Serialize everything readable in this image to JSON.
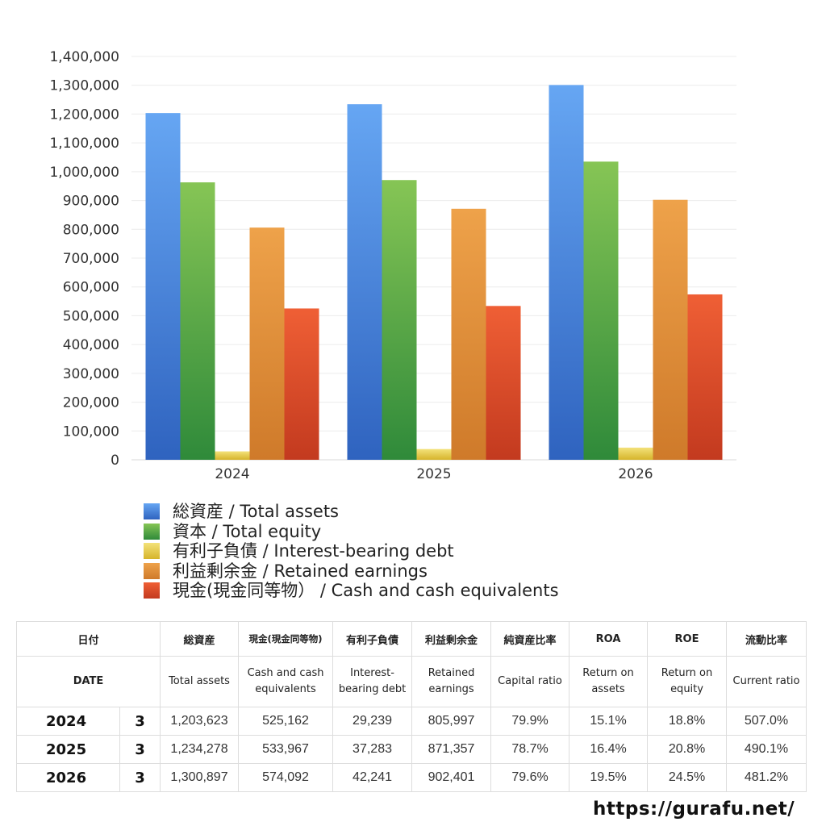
{
  "chart_data": {
    "type": "bar",
    "categories": [
      "2024",
      "2025",
      "2026"
    ],
    "ylim": [
      0,
      1400000
    ],
    "y_ticks": [
      "0",
      "100,000",
      "200,000",
      "300,000",
      "400,000",
      "500,000",
      "600,000",
      "700,000",
      "800,000",
      "900,000",
      "1,000,000",
      "1,100,000",
      "1,200,000",
      "1,300,000",
      "1,400,000"
    ],
    "grid": true,
    "legend_position": "bottom",
    "series": [
      {
        "name": "総資産 / Total assets",
        "values": [
          1203623,
          1234278,
          1300897
        ],
        "color_top": "#66a6f3",
        "color_bottom": "#2f63bf"
      },
      {
        "name": "資本 / Total equity",
        "values": [
          963000,
          971000,
          1035000
        ],
        "color_top": "#86c555",
        "color_bottom": "#2f8a3a"
      },
      {
        "name": "有利子負債 / Interest-bearing debt",
        "values": [
          29239,
          37283,
          42241
        ],
        "color_top": "#f3e27a",
        "color_bottom": "#d6b42b"
      },
      {
        "name": "利益剰余金 / Retained earnings",
        "values": [
          805997,
          871357,
          902401
        ],
        "color_top": "#eea24a",
        "color_bottom": "#cf7a2a"
      },
      {
        "name": "現金(現金同等物） /  Cash and cash equivalents",
        "values": [
          525162,
          533967,
          574092
        ],
        "color_top": "#ef5f35",
        "color_bottom": "#c33a1f"
      }
    ]
  },
  "table": {
    "header_ja": {
      "date": "日付",
      "total_assets": "総資産",
      "cash": "現金(現金同等物)",
      "debt": "有利子負債",
      "retained": "利益剰余金",
      "capital_ratio": "純資産比率",
      "roa": "ROA",
      "roe": "ROE",
      "current_ratio": "流動比率"
    },
    "header_en": {
      "date": "DATE",
      "total_assets": "Total assets",
      "cash": "Cash and cash equivalents",
      "debt": "Interest-bearing debt",
      "retained": "Retained earnings",
      "capital_ratio": "Capital ratio",
      "roa": "Return on assets",
      "roe": "Return on equity",
      "current_ratio": "Current ratio"
    },
    "rows": [
      {
        "year": "2024",
        "month": "3",
        "total_assets": "1,203,623",
        "cash": "525,162",
        "debt": "29,239",
        "retained": "805,997",
        "capital_ratio": "79.9%",
        "roa": "15.1%",
        "roe": "18.8%",
        "current_ratio": "507.0%"
      },
      {
        "year": "2025",
        "month": "3",
        "total_assets": "1,234,278",
        "cash": "533,967",
        "debt": "37,283",
        "retained": "871,357",
        "capital_ratio": "78.7%",
        "roa": "16.4%",
        "roe": "20.8%",
        "current_ratio": "490.1%"
      },
      {
        "year": "2026",
        "month": "3",
        "total_assets": "1,300,897",
        "cash": "574,092",
        "debt": "42,241",
        "retained": "902,401",
        "capital_ratio": "79.6%",
        "roa": "19.5%",
        "roe": "24.5%",
        "current_ratio": "481.2%"
      }
    ]
  },
  "source_url": "https://gurafu.net/"
}
